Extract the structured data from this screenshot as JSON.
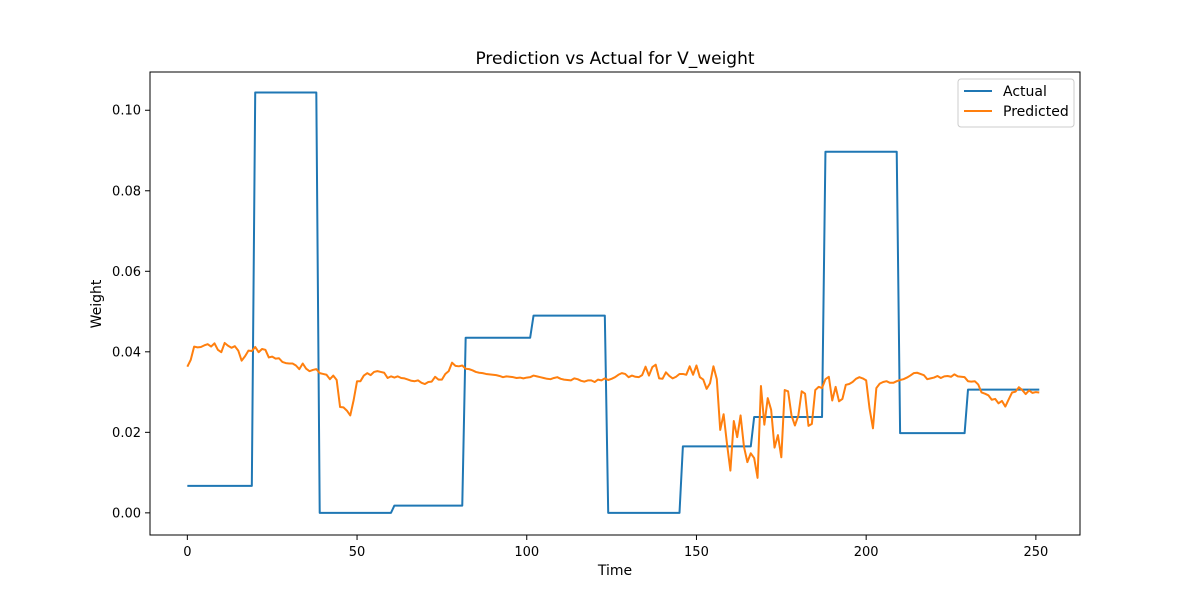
{
  "chart_data": {
    "type": "line",
    "title": "Prediction vs Actual for V_weight",
    "xlabel": "Time",
    "ylabel": "Weight",
    "xlim": [
      -11,
      263
    ],
    "ylim": [
      -0.0055,
      0.1095
    ],
    "xticks": [
      0,
      50,
      100,
      150,
      200,
      250
    ],
    "xtick_labels": [
      "0",
      "50",
      "100",
      "150",
      "200",
      "250"
    ],
    "yticks": [
      0.0,
      0.02,
      0.04,
      0.06,
      0.08,
      0.1
    ],
    "ytick_labels": [
      "0.00",
      "0.02",
      "0.04",
      "0.06",
      "0.08",
      "0.10"
    ],
    "grid": false,
    "legend_position": "top-right",
    "series": [
      {
        "name": "Actual",
        "color": "#1f77b4",
        "points": [
          [
            0,
            0.0067
          ],
          [
            19,
            0.0067
          ],
          [
            20,
            0.1044
          ],
          [
            38,
            0.1044
          ],
          [
            39,
            0.0
          ],
          [
            60,
            0.0
          ],
          [
            61,
            0.0018
          ],
          [
            81,
            0.0018
          ],
          [
            82,
            0.0435
          ],
          [
            101,
            0.0435
          ],
          [
            102,
            0.049
          ],
          [
            123,
            0.049
          ],
          [
            124,
            0.0
          ],
          [
            145,
            0.0
          ],
          [
            146,
            0.0165
          ],
          [
            166,
            0.0165
          ],
          [
            167,
            0.0238
          ],
          [
            187,
            0.0238
          ],
          [
            188,
            0.0897
          ],
          [
            209,
            0.0897
          ],
          [
            210,
            0.0198
          ],
          [
            229,
            0.0198
          ],
          [
            230,
            0.0306
          ],
          [
            251,
            0.0306
          ]
        ]
      },
      {
        "name": "Predicted",
        "color": "#ff7f0e",
        "points": [
          [
            0,
            0.0363
          ],
          [
            1,
            0.038
          ],
          [
            2,
            0.0413
          ],
          [
            3,
            0.0411
          ],
          [
            4,
            0.0412
          ],
          [
            5,
            0.0416
          ],
          [
            6,
            0.0419
          ],
          [
            7,
            0.0413
          ],
          [
            8,
            0.0421
          ],
          [
            9,
            0.0405
          ],
          [
            10,
            0.0399
          ],
          [
            11,
            0.0422
          ],
          [
            12,
            0.0415
          ],
          [
            13,
            0.041
          ],
          [
            14,
            0.0414
          ],
          [
            15,
            0.0403
          ],
          [
            16,
            0.0378
          ],
          [
            17,
            0.0389
          ],
          [
            18,
            0.0403
          ],
          [
            19,
            0.0402
          ],
          [
            20,
            0.0412
          ],
          [
            21,
            0.0399
          ],
          [
            22,
            0.0407
          ],
          [
            23,
            0.0405
          ],
          [
            24,
            0.0386
          ],
          [
            25,
            0.0388
          ],
          [
            26,
            0.0383
          ],
          [
            27,
            0.0384
          ],
          [
            28,
            0.0375
          ],
          [
            29,
            0.0372
          ],
          [
            30,
            0.0371
          ],
          [
            31,
            0.0371
          ],
          [
            32,
            0.0366
          ],
          [
            33,
            0.0357
          ],
          [
            34,
            0.0371
          ],
          [
            35,
            0.0358
          ],
          [
            36,
            0.0352
          ],
          [
            37,
            0.0355
          ],
          [
            38,
            0.0357
          ],
          [
            39,
            0.0347
          ],
          [
            40,
            0.0345
          ],
          [
            41,
            0.0343
          ],
          [
            42,
            0.0332
          ],
          [
            43,
            0.0341
          ],
          [
            44,
            0.033
          ],
          [
            45,
            0.0263
          ],
          [
            46,
            0.0262
          ],
          [
            47,
            0.0254
          ],
          [
            48,
            0.0242
          ],
          [
            49,
            0.028
          ],
          [
            50,
            0.0327
          ],
          [
            51,
            0.0327
          ],
          [
            52,
            0.0341
          ],
          [
            53,
            0.0347
          ],
          [
            54,
            0.0342
          ],
          [
            55,
            0.035
          ],
          [
            56,
            0.0352
          ],
          [
            57,
            0.035
          ],
          [
            58,
            0.0348
          ],
          [
            59,
            0.0335
          ],
          [
            60,
            0.0339
          ],
          [
            61,
            0.0336
          ],
          [
            62,
            0.0339
          ],
          [
            63,
            0.0335
          ],
          [
            64,
            0.0334
          ],
          [
            65,
            0.0331
          ],
          [
            66,
            0.0328
          ],
          [
            67,
            0.0327
          ],
          [
            68,
            0.0329
          ],
          [
            69,
            0.0323
          ],
          [
            70,
            0.032
          ],
          [
            71,
            0.0325
          ],
          [
            72,
            0.0326
          ],
          [
            73,
            0.0338
          ],
          [
            74,
            0.0331
          ],
          [
            75,
            0.0331
          ],
          [
            76,
            0.0345
          ],
          [
            77,
            0.0352
          ],
          [
            78,
            0.0373
          ],
          [
            79,
            0.0365
          ],
          [
            80,
            0.0364
          ],
          [
            81,
            0.0366
          ],
          [
            82,
            0.0358
          ],
          [
            83,
            0.0357
          ],
          [
            84,
            0.0354
          ],
          [
            85,
            0.035
          ],
          [
            86,
            0.0348
          ],
          [
            87,
            0.0347
          ],
          [
            88,
            0.0345
          ],
          [
            89,
            0.0344
          ],
          [
            90,
            0.0343
          ],
          [
            91,
            0.0342
          ],
          [
            92,
            0.034
          ],
          [
            93,
            0.0337
          ],
          [
            94,
            0.0339
          ],
          [
            95,
            0.0338
          ],
          [
            96,
            0.0337
          ],
          [
            97,
            0.0335
          ],
          [
            98,
            0.0336
          ],
          [
            99,
            0.0334
          ],
          [
            100,
            0.0336
          ],
          [
            101,
            0.0337
          ],
          [
            102,
            0.0341
          ],
          [
            103,
            0.0339
          ],
          [
            104,
            0.0337
          ],
          [
            105,
            0.0335
          ],
          [
            106,
            0.0333
          ],
          [
            107,
            0.0332
          ],
          [
            108,
            0.0335
          ],
          [
            109,
            0.0337
          ],
          [
            110,
            0.0333
          ],
          [
            111,
            0.0331
          ],
          [
            112,
            0.033
          ],
          [
            113,
            0.0329
          ],
          [
            114,
            0.0334
          ],
          [
            115,
            0.0332
          ],
          [
            116,
            0.0328
          ],
          [
            117,
            0.0326
          ],
          [
            118,
            0.0329
          ],
          [
            119,
            0.0329
          ],
          [
            120,
            0.0325
          ],
          [
            121,
            0.0331
          ],
          [
            122,
            0.0329
          ],
          [
            123,
            0.0334
          ],
          [
            124,
            0.033
          ],
          [
            125,
            0.0333
          ],
          [
            126,
            0.0337
          ],
          [
            127,
            0.0343
          ],
          [
            128,
            0.0347
          ],
          [
            129,
            0.0345
          ],
          [
            130,
            0.0337
          ],
          [
            131,
            0.0341
          ],
          [
            132,
            0.0338
          ],
          [
            133,
            0.0337
          ],
          [
            134,
            0.0342
          ],
          [
            135,
            0.0363
          ],
          [
            136,
            0.0341
          ],
          [
            137,
            0.0362
          ],
          [
            138,
            0.0368
          ],
          [
            139,
            0.0334
          ],
          [
            140,
            0.0333
          ],
          [
            141,
            0.0349
          ],
          [
            142,
            0.034
          ],
          [
            143,
            0.0334
          ],
          [
            144,
            0.0338
          ],
          [
            145,
            0.0345
          ],
          [
            146,
            0.0345
          ],
          [
            147,
            0.0343
          ],
          [
            148,
            0.0364
          ],
          [
            149,
            0.0343
          ],
          [
            150,
            0.0366
          ],
          [
            151,
            0.0337
          ],
          [
            152,
            0.0331
          ],
          [
            153,
            0.0308
          ],
          [
            154,
            0.0322
          ],
          [
            155,
            0.0364
          ],
          [
            156,
            0.0332
          ],
          [
            157,
            0.0206
          ],
          [
            158,
            0.0245
          ],
          [
            159,
            0.0171
          ],
          [
            160,
            0.0105
          ],
          [
            161,
            0.0228
          ],
          [
            162,
            0.0188
          ],
          [
            163,
            0.0242
          ],
          [
            164,
            0.0164
          ],
          [
            165,
            0.0126
          ],
          [
            166,
            0.0148
          ],
          [
            167,
            0.0136
          ],
          [
            168,
            0.0087
          ],
          [
            169,
            0.0315
          ],
          [
            170,
            0.0219
          ],
          [
            171,
            0.0285
          ],
          [
            172,
            0.0256
          ],
          [
            173,
            0.0162
          ],
          [
            174,
            0.0193
          ],
          [
            175,
            0.0138
          ],
          [
            176,
            0.0305
          ],
          [
            177,
            0.0302
          ],
          [
            178,
            0.0242
          ],
          [
            179,
            0.0217
          ],
          [
            180,
            0.0241
          ],
          [
            181,
            0.0302
          ],
          [
            182,
            0.0296
          ],
          [
            183,
            0.0216
          ],
          [
            184,
            0.0221
          ],
          [
            185,
            0.0305
          ],
          [
            186,
            0.0313
          ],
          [
            187,
            0.031
          ],
          [
            188,
            0.0332
          ],
          [
            189,
            0.0338
          ],
          [
            190,
            0.0279
          ],
          [
            191,
            0.0313
          ],
          [
            192,
            0.0277
          ],
          [
            193,
            0.0283
          ],
          [
            194,
            0.0318
          ],
          [
            195,
            0.032
          ],
          [
            196,
            0.0325
          ],
          [
            197,
            0.0333
          ],
          [
            198,
            0.0337
          ],
          [
            199,
            0.0334
          ],
          [
            200,
            0.0329
          ],
          [
            201,
            0.0259
          ],
          [
            202,
            0.021
          ],
          [
            203,
            0.031
          ],
          [
            204,
            0.0321
          ],
          [
            205,
            0.0325
          ],
          [
            206,
            0.0327
          ],
          [
            207,
            0.0323
          ],
          [
            208,
            0.0323
          ],
          [
            209,
            0.0327
          ],
          [
            210,
            0.033
          ],
          [
            211,
            0.0332
          ],
          [
            212,
            0.0336
          ],
          [
            213,
            0.0341
          ],
          [
            214,
            0.0347
          ],
          [
            215,
            0.0348
          ],
          [
            216,
            0.0345
          ],
          [
            217,
            0.0342
          ],
          [
            218,
            0.0332
          ],
          [
            219,
            0.0334
          ],
          [
            220,
            0.0336
          ],
          [
            221,
            0.034
          ],
          [
            222,
            0.0335
          ],
          [
            223,
            0.0339
          ],
          [
            224,
            0.034
          ],
          [
            225,
            0.0338
          ],
          [
            226,
            0.0344
          ],
          [
            227,
            0.0339
          ],
          [
            228,
            0.0338
          ],
          [
            229,
            0.0337
          ],
          [
            230,
            0.0327
          ],
          [
            231,
            0.0326
          ],
          [
            232,
            0.0327
          ],
          [
            233,
            0.0319
          ],
          [
            234,
            0.0299
          ],
          [
            235,
            0.0296
          ],
          [
            236,
            0.0292
          ],
          [
            237,
            0.0281
          ],
          [
            238,
            0.0283
          ],
          [
            239,
            0.0272
          ],
          [
            240,
            0.0278
          ],
          [
            241,
            0.0264
          ],
          [
            242,
            0.0282
          ],
          [
            243,
            0.0299
          ],
          [
            244,
            0.0301
          ],
          [
            245,
            0.0312
          ],
          [
            246,
            0.0305
          ],
          [
            247,
            0.0295
          ],
          [
            248,
            0.0304
          ],
          [
            249,
            0.0298
          ],
          [
            250,
            0.03
          ],
          [
            251,
            0.0299
          ]
        ]
      }
    ]
  }
}
